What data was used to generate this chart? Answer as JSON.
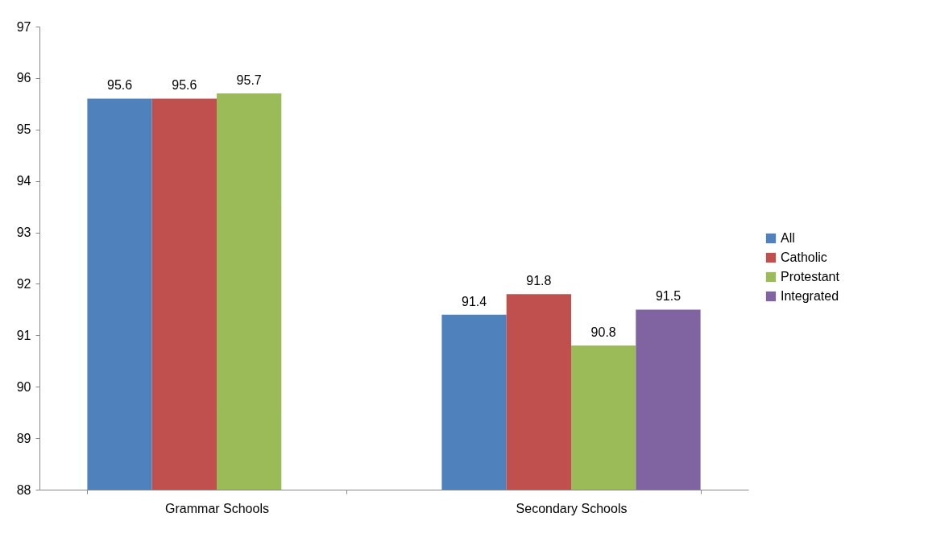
{
  "chart_data": {
    "type": "bar",
    "categories": [
      "Grammar Schools",
      "Secondary Schools"
    ],
    "series": [
      {
        "name": "All",
        "color": "#4f81bd",
        "values": [
          95.6,
          91.4
        ]
      },
      {
        "name": "Catholic",
        "color": "#c0504d",
        "values": [
          95.6,
          91.8
        ]
      },
      {
        "name": "Protestant",
        "color": "#9bbb59",
        "values": [
          95.7,
          90.8
        ]
      },
      {
        "name": "Integrated",
        "color": "#8064a2",
        "values": [
          null,
          91.5
        ]
      }
    ],
    "ylim": [
      88,
      97
    ],
    "yticks": [
      88,
      89,
      90,
      91,
      92,
      93,
      94,
      95,
      96,
      97
    ],
    "grid": false,
    "legend": "right",
    "data_labels": true
  }
}
